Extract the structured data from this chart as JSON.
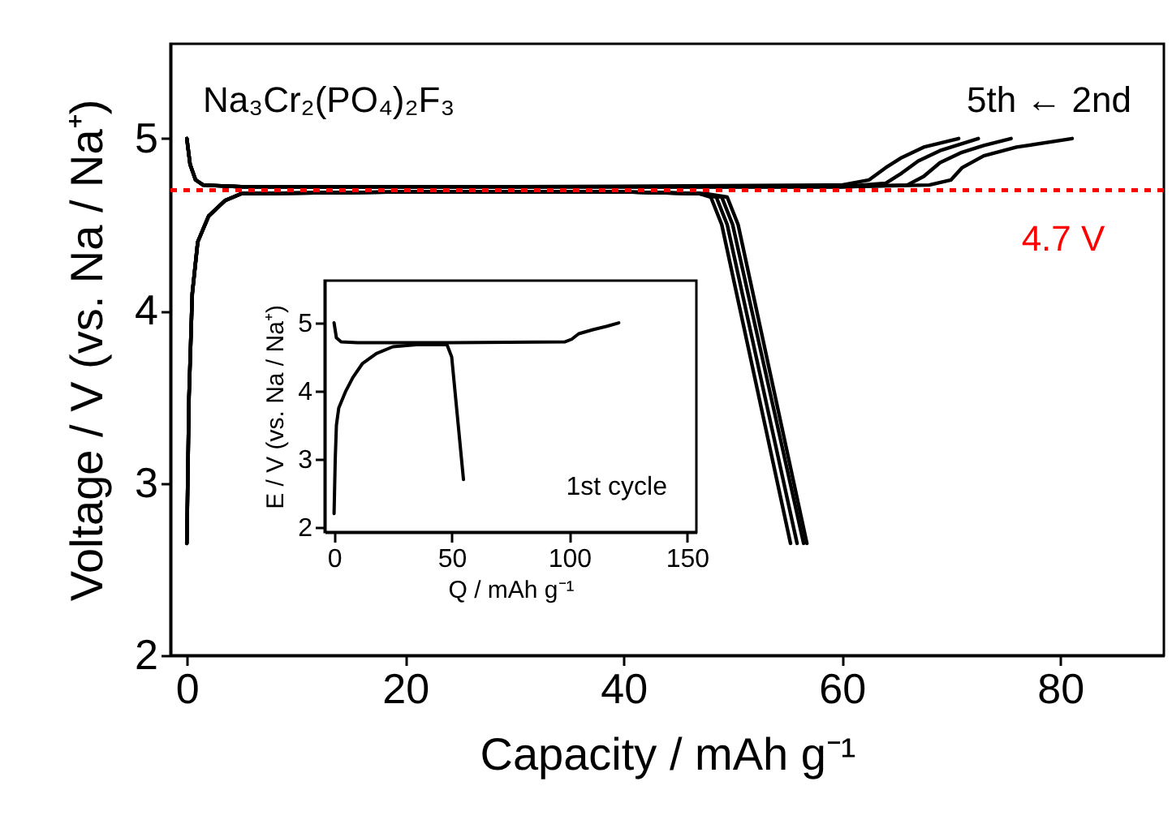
{
  "chart_data": [
    {
      "type": "line",
      "xlabel": "Capacity / mAh g⁻¹",
      "ylabel": "Voltage / V (vs. Na / Na⁺)",
      "xlim": [
        -1.5,
        89.5
      ],
      "ylim": [
        2,
        5.55
      ],
      "xticks": [
        0,
        20,
        40,
        60,
        80
      ],
      "yticks": [
        2,
        3,
        4,
        5
      ],
      "series": [
        {
          "color": "#000000",
          "x": [
            0,
            0.3,
            0.8,
            1.5,
            5,
            30,
            60,
            68,
            70,
            71,
            73,
            76,
            81.1
          ],
          "values": [
            5.0,
            4.85,
            4.76,
            4.73,
            4.72,
            4.72,
            4.72,
            4.73,
            4.76,
            4.83,
            4.9,
            4.95,
            5.0
          ]
        },
        {
          "color": "#000000",
          "x": [
            0,
            0.3,
            0.8,
            1.5,
            5,
            30,
            60,
            66,
            67.5,
            69,
            71,
            73,
            75.5
          ],
          "values": [
            5.0,
            4.85,
            4.76,
            4.73,
            4.72,
            4.72,
            4.72,
            4.73,
            4.78,
            4.86,
            4.92,
            4.96,
            5.0
          ]
        },
        {
          "color": "#000000",
          "x": [
            0,
            0.3,
            0.8,
            1.5,
            5,
            30,
            60,
            64,
            65.5,
            67,
            69,
            72.5
          ],
          "values": [
            5.0,
            4.85,
            4.76,
            4.73,
            4.72,
            4.72,
            4.72,
            4.74,
            4.8,
            4.87,
            4.93,
            5.0
          ]
        },
        {
          "color": "#000000",
          "x": [
            0,
            0.3,
            0.8,
            1.5,
            5,
            30,
            60,
            62.5,
            64,
            65.5,
            67.5,
            70.7
          ],
          "values": [
            5.0,
            4.85,
            4.76,
            4.73,
            4.72,
            4.72,
            4.73,
            4.76,
            4.83,
            4.89,
            4.95,
            5.0
          ]
        },
        {
          "color": "#000000",
          "x": [
            0,
            0.2,
            0.5,
            1,
            2,
            3.5,
            5,
            20,
            40,
            47,
            48,
            49,
            55.3
          ],
          "values": [
            2.65,
            3.5,
            4.1,
            4.4,
            4.55,
            4.64,
            4.68,
            4.69,
            4.69,
            4.68,
            4.66,
            4.5,
            2.65
          ]
        },
        {
          "color": "#000000",
          "x": [
            0,
            0.2,
            0.5,
            1,
            2,
            3.5,
            5,
            20,
            40,
            47,
            48.5,
            49.5,
            55.9
          ],
          "values": [
            2.65,
            3.5,
            4.1,
            4.4,
            4.55,
            4.64,
            4.68,
            4.69,
            4.69,
            4.68,
            4.66,
            4.5,
            2.65
          ]
        },
        {
          "color": "#000000",
          "x": [
            0,
            0.2,
            0.5,
            1,
            2,
            3.5,
            5,
            20,
            40,
            47,
            49,
            50,
            56.5
          ],
          "values": [
            2.65,
            3.5,
            4.1,
            4.4,
            4.55,
            4.64,
            4.68,
            4.69,
            4.69,
            4.68,
            4.66,
            4.5,
            2.65
          ]
        },
        {
          "color": "#000000",
          "x": [
            0,
            0.2,
            0.5,
            1,
            2,
            3.5,
            5,
            20,
            40,
            47.5,
            49.5,
            50.5,
            56.8
          ],
          "values": [
            2.65,
            3.5,
            4.1,
            4.4,
            4.55,
            4.64,
            4.68,
            4.69,
            4.69,
            4.68,
            4.66,
            4.5,
            2.65
          ]
        }
      ],
      "ref_lines": [
        {
          "axis": "y",
          "value": 4.7,
          "label": "4.7 V",
          "color": "#ff0000",
          "line_style": "dotted"
        }
      ],
      "annotations": [
        "Na₃Cr₂(PO₄)₂F₃",
        "5th ← 2nd"
      ]
    },
    {
      "type": "line",
      "xlabel": "Q / mAh g⁻¹",
      "ylabel": "E / V (vs. Na / Na⁺)",
      "xlim": [
        -4,
        154
      ],
      "ylim": [
        1.93,
        5.62
      ],
      "xticks": [
        0,
        50,
        100,
        150
      ],
      "yticks": [
        2,
        3,
        4,
        5
      ],
      "series": [
        {
          "color": "#000000",
          "x": [
            0,
            1,
            3,
            10,
            50,
            98,
            101,
            104,
            110,
            116,
            121
          ],
          "values": [
            5.0,
            4.78,
            4.72,
            4.71,
            4.71,
            4.72,
            4.76,
            4.84,
            4.9,
            4.95,
            5.0
          ]
        },
        {
          "color": "#000000",
          "x": [
            0,
            0.5,
            1,
            2,
            5,
            8,
            12,
            18,
            25,
            35,
            48,
            50,
            55
          ],
          "values": [
            2.2,
            3.0,
            3.5,
            3.75,
            4.0,
            4.2,
            4.4,
            4.55,
            4.65,
            4.68,
            4.68,
            4.5,
            2.7
          ]
        }
      ],
      "annotations": [
        "1st cycle"
      ]
    }
  ]
}
